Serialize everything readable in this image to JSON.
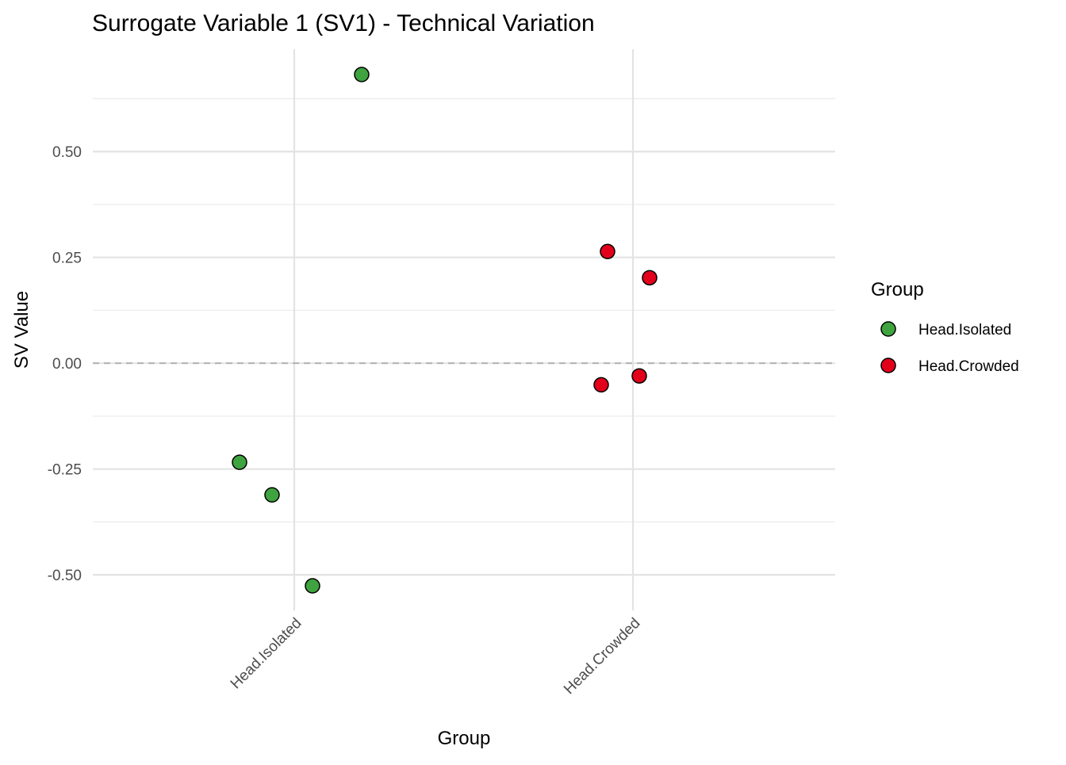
{
  "chart_data": {
    "type": "scatter",
    "title": "Surrogate Variable 1 (SV1) - Technical Variation",
    "xlabel": "Group",
    "ylabel": "SV Value",
    "categories": [
      "Head.Isolated",
      "Head.Crowded"
    ],
    "ylim": [
      -0.584,
      0.742
    ],
    "yticks": [
      -0.5,
      -0.25,
      0,
      0.25,
      0.5
    ],
    "ytick_labels": [
      "-0.50",
      "-0.25",
      "0.00",
      "0.25",
      "0.50"
    ],
    "grid": true,
    "reference_line": {
      "y": 0,
      "style": "dashed"
    },
    "series": [
      {
        "name": "Head.Isolated",
        "color": "#3FA33F",
        "category": "Head.Isolated",
        "values": [
          0.682,
          -0.234,
          -0.311,
          -0.526
        ]
      },
      {
        "name": "Head.Crowded",
        "color": "#E3001B",
        "category": "Head.Crowded",
        "values": [
          0.264,
          0.202,
          -0.051,
          -0.03
        ]
      }
    ],
    "legend": {
      "title": "Group",
      "placement": "right"
    }
  }
}
